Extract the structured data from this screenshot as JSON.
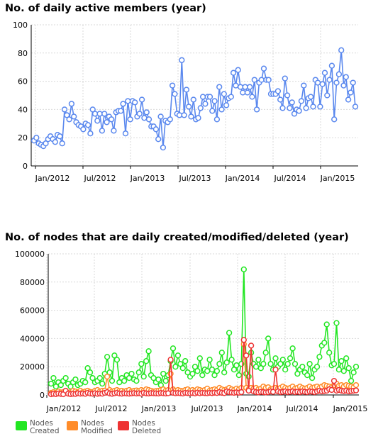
{
  "chart_data": [
    {
      "type": "line",
      "title": "No. of daily active members (year)",
      "xlabel": "",
      "ylabel": "",
      "ylim": [
        0,
        100
      ],
      "yticks": [
        0,
        20,
        40,
        60,
        80,
        100
      ],
      "xtick_labels": [
        "Jan/2012",
        "Jul/2012",
        "Jan/2013",
        "Jul/2013",
        "Jan/2014",
        "Jul/2014",
        "Jan/2015"
      ],
      "grid": true,
      "series": [
        {
          "color": "#5a88ee",
          "values": [
            18,
            20,
            16,
            15,
            14,
            16,
            19,
            21,
            19,
            17,
            22,
            21,
            16,
            40,
            36,
            33,
            44,
            35,
            31,
            29,
            28,
            26,
            30,
            29,
            23,
            40,
            37,
            32,
            37,
            25,
            37,
            31,
            35,
            33,
            25,
            38,
            39,
            39,
            44,
            23,
            46,
            33,
            46,
            45,
            35,
            37,
            47,
            34,
            38,
            33,
            28,
            28,
            26,
            19,
            35,
            13,
            32,
            31,
            33,
            57,
            51,
            37,
            36,
            75,
            36,
            54,
            42,
            35,
            47,
            33,
            34,
            41,
            49,
            44,
            49,
            49,
            39,
            46,
            33,
            56,
            40,
            51,
            43,
            48,
            49,
            66,
            57,
            68,
            56,
            52,
            56,
            52,
            56,
            49,
            61,
            40,
            59,
            61,
            69,
            61,
            61,
            51,
            51,
            51,
            53,
            47,
            41,
            62,
            50,
            41,
            45,
            37,
            40,
            39,
            46,
            57,
            41,
            48,
            49,
            42,
            61,
            59,
            42,
            58,
            66,
            50,
            61,
            71,
            33,
            59,
            65,
            82,
            57,
            63,
            47,
            52,
            59,
            42
          ]
        }
      ]
    },
    {
      "type": "line",
      "title": "No. of nodes that are daily created/modified/deleted (year)",
      "xlabel": "",
      "ylabel": "",
      "ylim": [
        0,
        100000
      ],
      "yticks": [
        0,
        20000,
        40000,
        60000,
        80000,
        100000
      ],
      "xtick_labels": [
        "Jan/2012",
        "Jul/2012",
        "Jan/2013",
        "Jul/2013",
        "Jan/2014",
        "Jul/2014",
        "Jan/2015"
      ],
      "grid": true,
      "legend_position": "bottom-left",
      "series": [
        {
          "name": "Nodes Created",
          "color": "#22e622",
          "values": [
            8000,
            12000,
            6000,
            9000,
            7000,
            10000,
            12000,
            8000,
            6000,
            9000,
            11000,
            7000,
            8000,
            10000,
            9000,
            19000,
            16000,
            12000,
            9000,
            10000,
            12000,
            8000,
            15000,
            27000,
            16000,
            10000,
            28000,
            25000,
            9000,
            12000,
            10000,
            14000,
            12000,
            15000,
            11000,
            10000,
            16000,
            22000,
            13000,
            24000,
            31000,
            14000,
            12000,
            9000,
            11000,
            7000,
            15000,
            10000,
            14000,
            24000,
            33000,
            20000,
            28000,
            22000,
            19000,
            24000,
            16000,
            13000,
            15000,
            20000,
            17000,
            26000,
            14000,
            18000,
            17000,
            25000,
            18000,
            14000,
            17000,
            22000,
            30000,
            16000,
            23000,
            44000,
            25000,
            18000,
            21000,
            14000,
            22000,
            89000,
            15000,
            13000,
            30000,
            22000,
            20000,
            25000,
            19000,
            22000,
            30000,
            40000,
            22000,
            18000,
            26000,
            20000,
            22000,
            25000,
            18000,
            22000,
            26000,
            33000,
            22000,
            15000,
            18000,
            20000,
            16000,
            14000,
            22000,
            12000,
            18000,
            20000,
            27000,
            35000,
            37000,
            50000,
            30000,
            21000,
            22000,
            51000,
            18000,
            24000,
            17000,
            26000,
            19000,
            10000,
            16000,
            20000
          ]
        },
        {
          "name": "Nodes Modified",
          "color": "#ff8c2a",
          "values": [
            1500,
            2000,
            1500,
            2500,
            1800,
            2000,
            2500,
            1600,
            2000,
            3000,
            2500,
            2000,
            3000,
            2000,
            2500,
            3000,
            2200,
            2000,
            3000,
            3500,
            2500,
            3000,
            3000,
            13000,
            3500,
            2500,
            3000,
            3500,
            2800,
            3000,
            2500,
            3000,
            3500,
            2500,
            3000,
            3200,
            2800,
            3500,
            3000,
            4000,
            3500,
            3000,
            2500,
            2800,
            3000,
            3500,
            4000,
            3000,
            3500,
            15000,
            4000,
            3000,
            3500,
            3000,
            2800,
            3500,
            4000,
            3000,
            3500,
            3000,
            4000,
            3500,
            3000,
            3500,
            4500,
            3000,
            3500,
            4000,
            3500,
            5000,
            4000,
            3500,
            4000,
            5000,
            4000,
            3500,
            4500,
            4000,
            5000,
            36000,
            5000,
            4000,
            5000,
            4500,
            5000,
            4000,
            4500,
            6000,
            5000,
            5500,
            4000,
            4500,
            5000,
            4500,
            5000,
            6000,
            5000,
            4500,
            5000,
            6000,
            4500,
            5000,
            6000,
            5000,
            4500,
            5000,
            6000,
            5000,
            5500,
            6000,
            5000,
            6000,
            7000,
            6500,
            6000,
            5500,
            7000,
            8000,
            6500,
            7000,
            6000,
            7000,
            6500,
            6000,
            5500,
            7000
          ]
        },
        {
          "name": "Nodes Deleted",
          "color": "#ee3333",
          "values": [
            500,
            800,
            600,
            1000,
            700,
            500,
            3000,
            900,
            600,
            800,
            700,
            1200,
            900,
            1000,
            800,
            1500,
            1000,
            900,
            1200,
            800,
            1000,
            900,
            1500,
            2000,
            1000,
            800,
            1200,
            1500,
            1000,
            900,
            1200,
            1000,
            900,
            1100,
            1300,
            1000,
            1200,
            900,
            1500,
            1100,
            1000,
            1300,
            1200,
            1100,
            1000,
            1400,
            1200,
            1000,
            1200,
            25000,
            1500,
            1200,
            1400,
            1200,
            1000,
            1500,
            1300,
            1200,
            1400,
            1100,
            1600,
            1200,
            1500,
            1300,
            1200,
            1500,
            1300,
            1600,
            1400,
            2000,
            1500,
            1300,
            2500,
            2000,
            1700,
            1500,
            1800,
            1600,
            2000,
            39000,
            28000,
            3000,
            35000,
            2500,
            2000,
            1800,
            2200,
            2000,
            1800,
            2000,
            2500,
            2200,
            18000,
            2500,
            2000,
            2200,
            2500,
            2000,
            2200,
            2500,
            2000,
            2300,
            2000,
            2500,
            2200,
            2000,
            2500,
            2300,
            2000,
            2500,
            3000,
            2500,
            2800,
            3000,
            4000,
            3500,
            10000,
            3000,
            3500,
            3000,
            2800,
            3000,
            2500,
            2800,
            3000,
            3200
          ]
        }
      ]
    }
  ]
}
